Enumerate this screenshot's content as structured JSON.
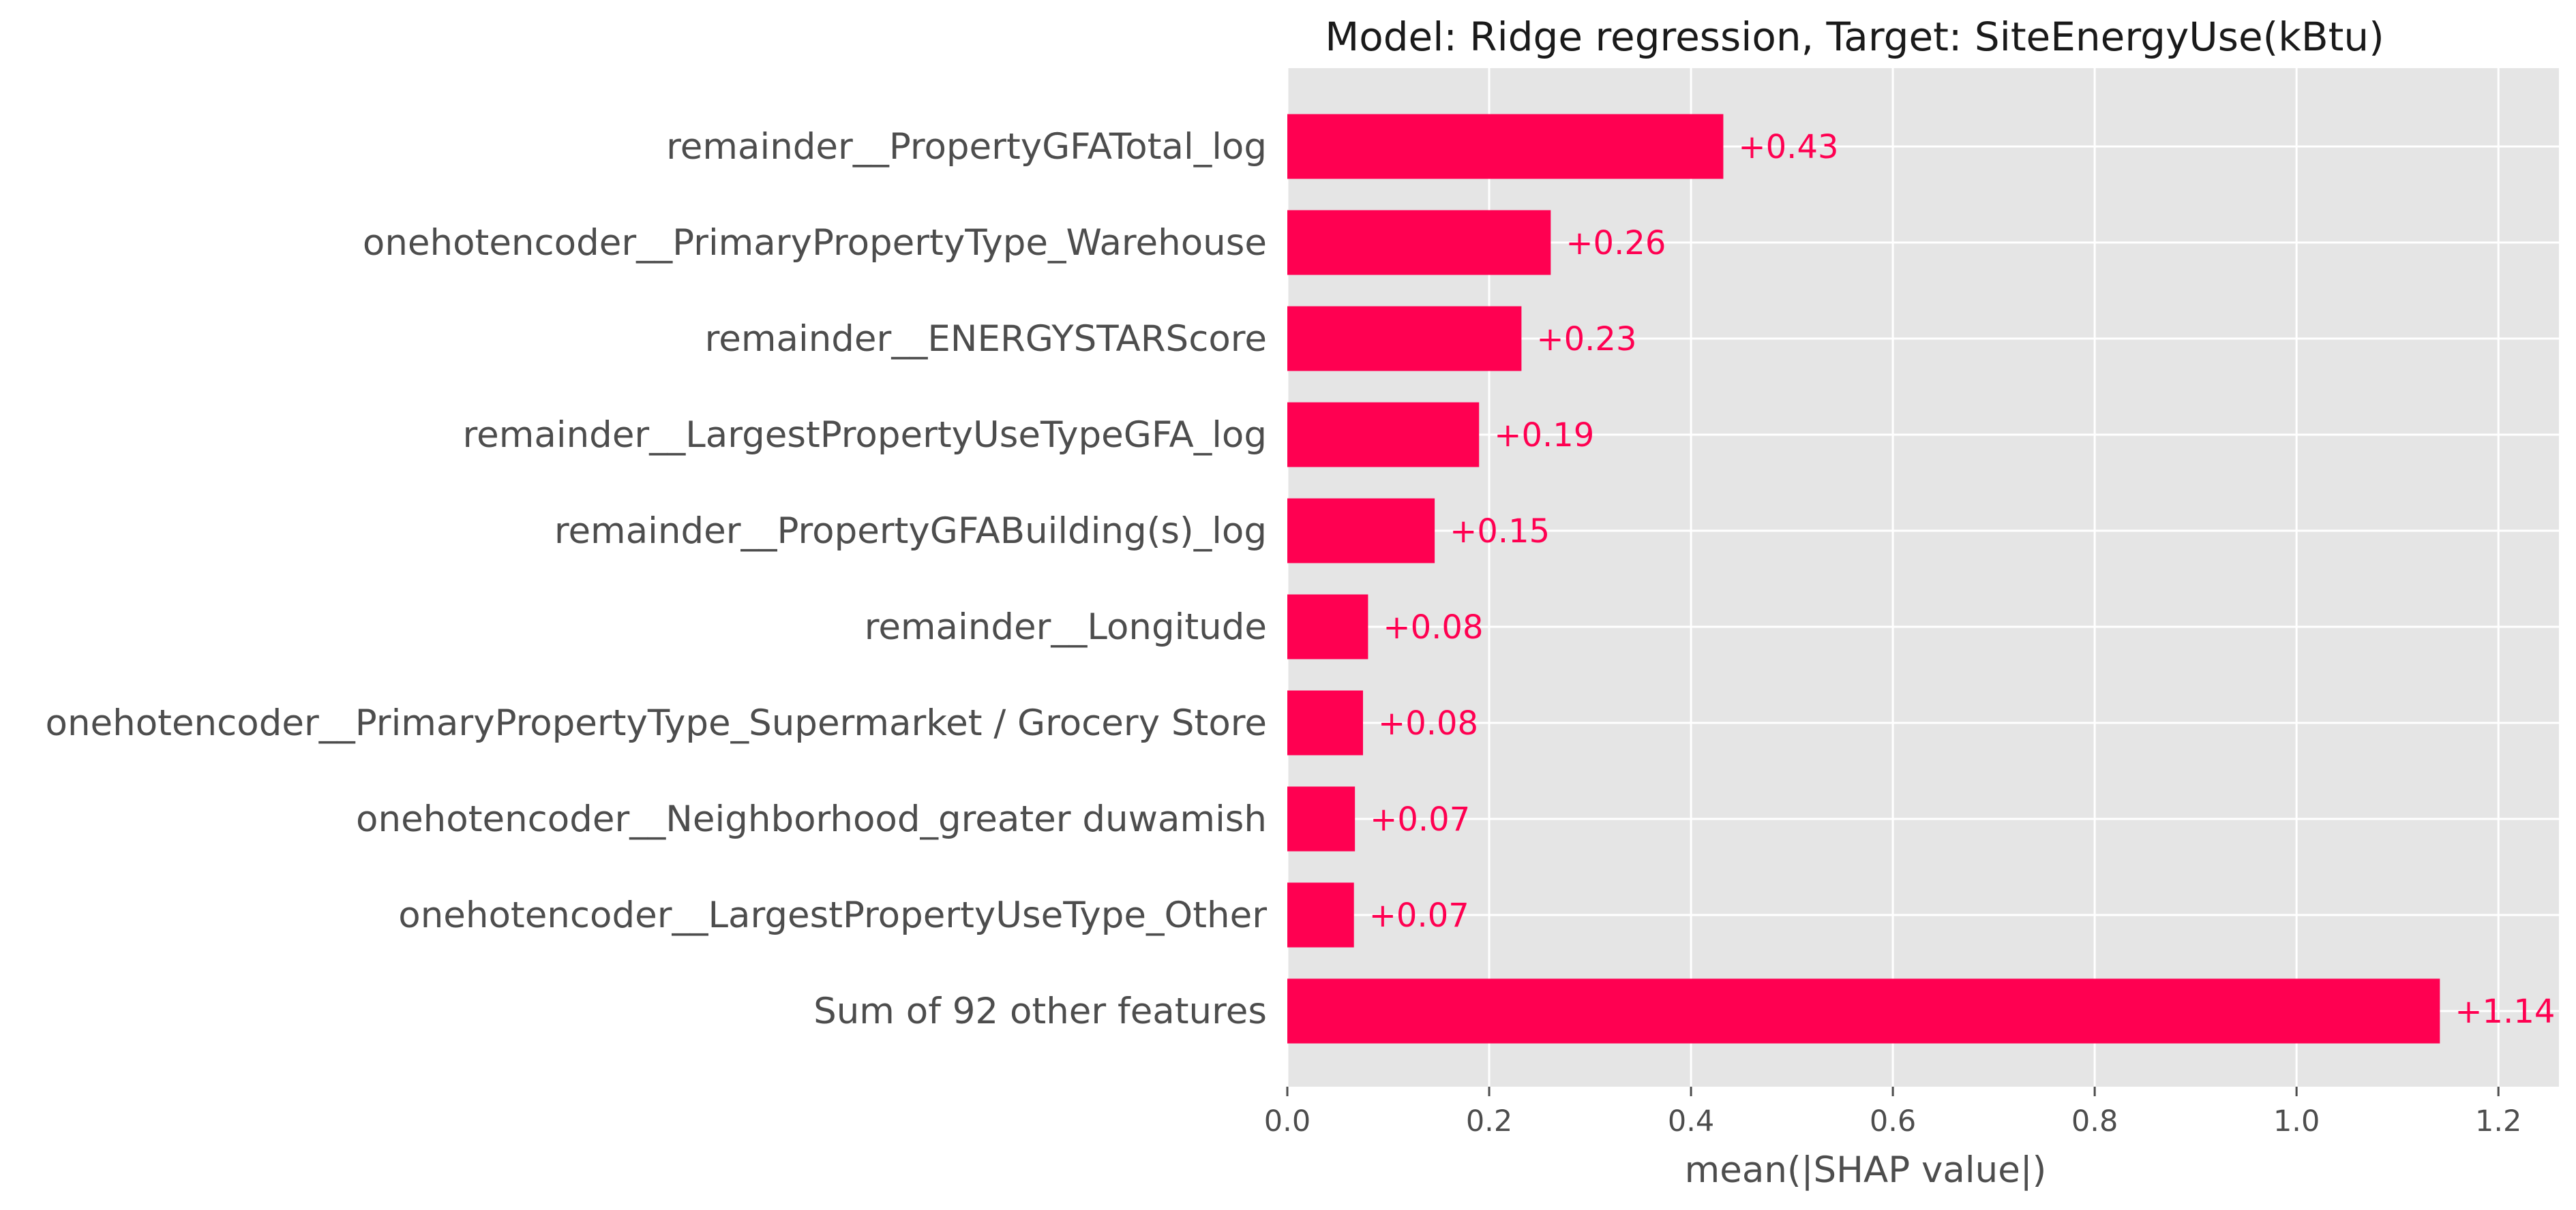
{
  "chart_data": {
    "type": "bar",
    "orientation": "horizontal",
    "title": "Model: Ridge regression, Target: SiteEnergyUse(kBtu)",
    "xlabel": "mean(|SHAP value|)",
    "ylabel": "",
    "xlim": [
      0,
      1.26
    ],
    "xticks": [
      "0.0",
      "0.2",
      "0.4",
      "0.6",
      "0.8",
      "1.0",
      "1.2"
    ],
    "xtick_values": [
      0,
      0.2,
      0.4,
      0.6,
      0.8,
      1.0,
      1.2
    ],
    "grid": true,
    "bar_color": "#ff0051",
    "background_color": "#e5e5e5",
    "categories": [
      "remainder__PropertyGFATotal_log",
      "onehotencoder__PrimaryPropertyType_Warehouse",
      "remainder__ENERGYSTARScore",
      "remainder__LargestPropertyUseTypeGFA_log",
      "remainder__PropertyGFABuilding(s)_log",
      "remainder__Longitude",
      "onehotencoder__PrimaryPropertyType_Supermarket / Grocery Store",
      "onehotencoder__Neighborhood_greater duwamish",
      "onehotencoder__LargestPropertyUseType_Other",
      "Sum of 92 other features"
    ],
    "values": [
      0.432,
      0.261,
      0.232,
      0.19,
      0.146,
      0.08,
      0.075,
      0.067,
      0.066,
      1.142
    ],
    "value_labels": [
      "+0.43",
      "+0.26",
      "+0.23",
      "+0.19",
      "+0.15",
      "+0.08",
      "+0.08",
      "+0.07",
      "+0.07",
      "+1.14"
    ]
  }
}
